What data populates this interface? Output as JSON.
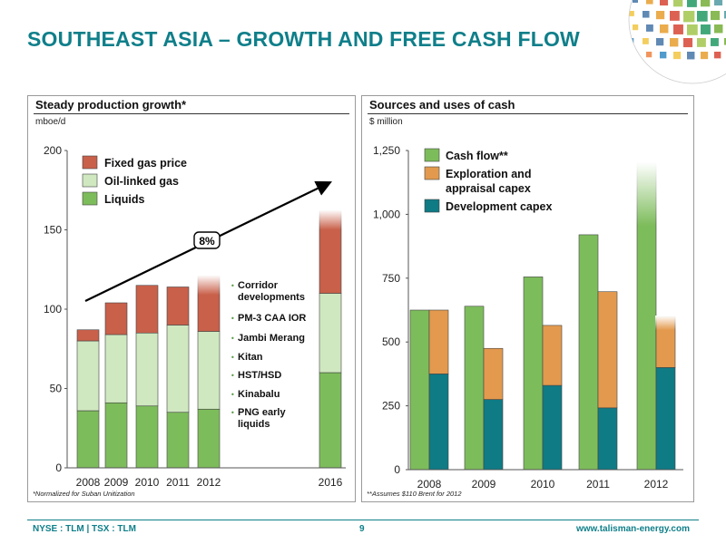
{
  "title": "SOUTHEAST ASIA – GROWTH AND FREE CASH FLOW",
  "footer": {
    "left": "NYSE : TLM | TSX : TLM",
    "page": "9",
    "right": "www.talisman-energy.com"
  },
  "colors": {
    "accent": "#0f7f8a",
    "fixed_gas": "#c9604a",
    "oil_linked": "#cfe8c0",
    "liquids": "#7dbc5b",
    "cash_flow": "#7dbc5b",
    "exploration": "#e39a4e",
    "development": "#0e7b85"
  },
  "chart_data": [
    {
      "type": "bar",
      "stacked": true,
      "title": "Steady production growth*",
      "ylabel": "mboe/d",
      "ylim": [
        0,
        200
      ],
      "yticks": [
        "0",
        "50",
        "100",
        "150",
        "200"
      ],
      "categories": [
        "2008",
        "2009",
        "2010",
        "2011",
        "2012",
        "2016"
      ],
      "series": [
        {
          "name": "Liquids",
          "values": [
            36,
            41,
            39,
            35,
            37,
            60
          ]
        },
        {
          "name": "Oil-linked gas",
          "values": [
            44,
            43,
            46,
            55,
            49,
            50
          ]
        },
        {
          "name": "Fixed gas price",
          "values": [
            7,
            20,
            30,
            24,
            35,
            52
          ]
        }
      ],
      "faded_categories": [
        "2012",
        "2016"
      ],
      "growth_label": "8%",
      "project_list": [
        "Corridor developments",
        "PM-3 CAA IOR",
        "Jambi Merang",
        "Kitan",
        "HST/HSD",
        "Kinabalu",
        "PNG early liquids"
      ],
      "legend_position": "top-left",
      "footnote": "*Normalized for Suban Unitization"
    },
    {
      "type": "bar",
      "title": "Sources and uses of cash",
      "ylabel": "$ million",
      "ylim": [
        0,
        1250
      ],
      "yticks": [
        "0",
        "250",
        "500",
        "750",
        "1,000",
        "1,250"
      ],
      "categories": [
        "2008",
        "2009",
        "2010",
        "2011",
        "2012"
      ],
      "series": [
        {
          "name": "Cash flow**",
          "values": [
            625,
            640,
            755,
            920,
            1200
          ]
        },
        {
          "name": "Exploration and appraisal capex",
          "values": [
            250,
            200,
            235,
            455,
            200
          ]
        },
        {
          "name": "Development capex",
          "values": [
            375,
            275,
            330,
            242,
            400
          ]
        }
      ],
      "faded_categories": [
        "2012"
      ],
      "legend_position": "top-left",
      "footnote": "**Assumes $110 Brent for 2012"
    }
  ]
}
